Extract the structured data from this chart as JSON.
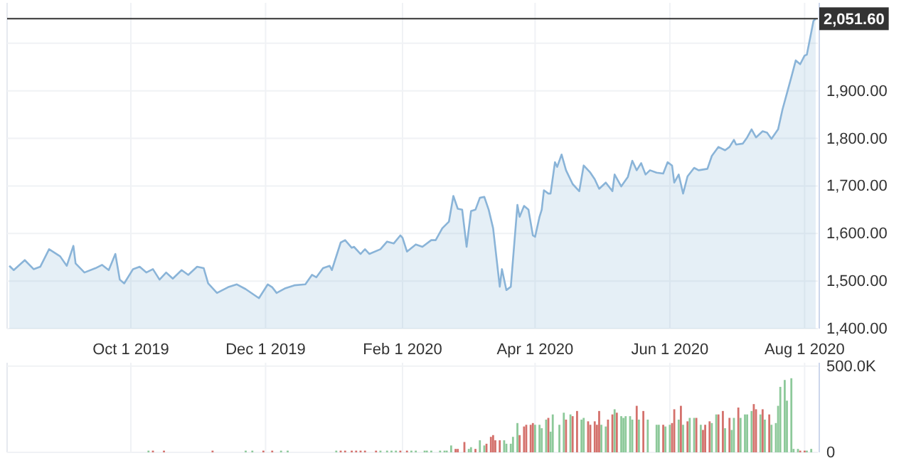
{
  "chart_data": [
    {
      "type": "area",
      "xlim": [
        "2019-08-06",
        "2020-08-07"
      ],
      "ylim": [
        1400,
        2085
      ],
      "xticks": [
        {
          "value": "2019-10-01",
          "label": "Oct 1 2019"
        },
        {
          "value": "2019-12-01",
          "label": "Dec 1 2019"
        },
        {
          "value": "2020-02-01",
          "label": "Feb 1 2020"
        },
        {
          "value": "2020-04-01",
          "label": "Apr 1 2020"
        },
        {
          "value": "2020-06-01",
          "label": "Jun 1 2020"
        },
        {
          "value": "2020-08-01",
          "label": "Aug 1 2020"
        }
      ],
      "yticks": [
        {
          "value": 1400,
          "label": "1,400.00"
        },
        {
          "value": 1500,
          "label": "1,500.00"
        },
        {
          "value": 1600,
          "label": "1,600.00"
        },
        {
          "value": 1700,
          "label": "1,700.00"
        },
        {
          "value": 1800,
          "label": "1,800.00"
        },
        {
          "value": 1900,
          "label": "1,900.00"
        },
        {
          "value": 2000,
          "label": null
        }
      ],
      "grid": true,
      "ref_lines": [
        {
          "axis": "y",
          "value": 2051.6,
          "label": "2,051.60",
          "color": "#333333"
        }
      ],
      "series": [
        {
          "color": "#8ab4d8",
          "x": [
            "2019-08-07",
            "2019-08-09",
            "2019-08-14",
            "2019-08-18",
            "2019-08-21",
            "2019-08-25",
            "2019-08-30",
            "2019-09-02",
            "2019-09-05",
            "2019-09-06",
            "2019-09-10",
            "2019-09-15",
            "2019-09-18",
            "2019-09-21",
            "2019-09-24",
            "2019-09-26",
            "2019-09-28",
            "2019-10-02",
            "2019-10-05",
            "2019-10-08",
            "2019-10-11",
            "2019-10-14",
            "2019-10-17",
            "2019-10-20",
            "2019-10-24",
            "2019-10-27",
            "2019-10-31",
            "2019-11-03",
            "2019-11-05",
            "2019-11-09",
            "2019-11-14",
            "2019-11-18",
            "2019-11-22",
            "2019-11-28",
            "2019-12-02",
            "2019-12-04",
            "2019-12-06",
            "2019-12-10",
            "2019-12-14",
            "2019-12-19",
            "2019-12-22",
            "2019-12-24",
            "2019-12-27",
            "2019-12-30",
            "2019-12-31",
            "2020-01-04",
            "2020-01-06",
            "2020-01-09",
            "2020-01-10",
            "2020-01-13",
            "2020-01-15",
            "2020-01-17",
            "2020-01-22",
            "2020-01-25",
            "2020-01-28",
            "2020-01-31",
            "2020-02-01",
            "2020-02-03",
            "2020-02-07",
            "2020-02-10",
            "2020-02-14",
            "2020-02-16",
            "2020-02-19",
            "2020-02-22",
            "2020-02-24",
            "2020-02-26",
            "2020-02-28",
            "2020-03-01",
            "2020-03-03",
            "2020-03-05",
            "2020-03-07",
            "2020-03-09",
            "2020-03-11",
            "2020-03-13",
            "2020-03-16",
            "2020-03-17",
            "2020-03-19",
            "2020-03-21",
            "2020-03-24",
            "2020-03-25",
            "2020-03-27",
            "2020-03-29",
            "2020-03-31",
            "2020-04-01",
            "2020-04-03",
            "2020-04-04",
            "2020-04-05",
            "2020-04-07",
            "2020-04-08",
            "2020-04-10",
            "2020-04-11",
            "2020-04-13",
            "2020-04-15",
            "2020-04-18",
            "2020-04-21",
            "2020-04-23",
            "2020-04-26",
            "2020-04-28",
            "2020-04-30",
            "2020-05-03",
            "2020-05-06",
            "2020-05-07",
            "2020-05-10",
            "2020-05-13",
            "2020-05-15",
            "2020-05-17",
            "2020-05-19",
            "2020-05-21",
            "2020-05-23",
            "2020-05-26",
            "2020-05-29",
            "2020-05-31",
            "2020-06-02",
            "2020-06-03",
            "2020-06-05",
            "2020-06-07",
            "2020-06-09",
            "2020-06-12",
            "2020-06-14",
            "2020-06-18",
            "2020-06-20",
            "2020-06-23",
            "2020-06-26",
            "2020-06-28",
            "2020-06-30",
            "2020-07-01",
            "2020-07-04",
            "2020-07-06",
            "2020-07-08",
            "2020-07-10",
            "2020-07-13",
            "2020-07-15",
            "2020-07-17",
            "2020-07-20",
            "2020-07-22",
            "2020-07-24",
            "2020-07-26",
            "2020-07-28",
            "2020-07-30",
            "2020-08-01",
            "2020-08-02",
            "2020-08-04",
            "2020-08-05",
            "2020-08-06"
          ],
          "values": [
            1532,
            1523,
            1544,
            1525,
            1530,
            1567,
            1552,
            1532,
            1574,
            1537,
            1518,
            1527,
            1534,
            1523,
            1557,
            1503,
            1495,
            1525,
            1530,
            1518,
            1525,
            1503,
            1518,
            1505,
            1523,
            1513,
            1530,
            1527,
            1495,
            1475,
            1487,
            1493,
            1483,
            1464,
            1493,
            1487,
            1475,
            1485,
            1491,
            1493,
            1513,
            1508,
            1527,
            1532,
            1523,
            1581,
            1586,
            1570,
            1572,
            1557,
            1567,
            1557,
            1567,
            1583,
            1579,
            1596,
            1591,
            1562,
            1577,
            1572,
            1586,
            1586,
            1611,
            1625,
            1679,
            1652,
            1650,
            1572,
            1647,
            1650,
            1675,
            1677,
            1650,
            1611,
            1488,
            1525,
            1481,
            1488,
            1660,
            1635,
            1658,
            1650,
            1596,
            1593,
            1635,
            1650,
            1691,
            1684,
            1684,
            1750,
            1740,
            1766,
            1733,
            1704,
            1689,
            1743,
            1728,
            1714,
            1694,
            1707,
            1689,
            1724,
            1699,
            1719,
            1753,
            1733,
            1748,
            1724,
            1733,
            1728,
            1726,
            1750,
            1743,
            1707,
            1724,
            1684,
            1720,
            1738,
            1733,
            1736,
            1763,
            1782,
            1775,
            1782,
            1797,
            1787,
            1789,
            1802,
            1819,
            1802,
            1815,
            1812,
            1799,
            1819,
            1861,
            1895,
            1929,
            1964,
            1956,
            1974,
            1976,
            2023,
            2047,
            2051.6
          ]
        }
      ]
    },
    {
      "type": "bar",
      "xlim": [
        "2019-08-06",
        "2020-08-07"
      ],
      "ylim": [
        0,
        520000
      ],
      "xticks": [
        {
          "value": "2019-10-01",
          "label": null
        },
        {
          "value": "2019-12-01",
          "label": null
        },
        {
          "value": "2020-02-01",
          "label": null
        },
        {
          "value": "2020-04-01",
          "label": null
        },
        {
          "value": "2020-06-01",
          "label": null
        },
        {
          "value": "2020-08-01",
          "label": null
        }
      ],
      "yticks": [
        0,
        {
          "value": 500000,
          "label": "500.0K"
        }
      ],
      "grid": true,
      "tick_labels": "y",
      "series": [
        {
          "x": [
            "2019-10-09",
            "2019-10-11",
            "2019-10-16",
            "2019-11-07",
            "2019-11-22",
            "2019-11-25",
            "2019-11-30",
            "2019-12-04",
            "2019-12-08",
            "2019-12-11",
            "2020-01-02",
            "2020-01-04",
            "2020-01-06",
            "2020-01-09",
            "2020-01-11",
            "2020-01-13",
            "2020-01-15",
            "2020-01-20",
            "2020-01-22",
            "2020-01-25",
            "2020-01-27",
            "2020-01-29",
            "2020-01-31",
            "2020-02-03",
            "2020-02-05",
            "2020-02-07",
            "2020-02-11",
            "2020-02-12",
            "2020-02-14",
            "2020-02-18",
            "2020-02-20",
            "2020-02-21",
            "2020-02-23",
            "2020-02-25",
            "2020-02-26",
            "2020-02-29",
            "2020-03-02",
            "2020-03-03",
            "2020-03-05",
            "2020-03-07",
            "2020-03-09",
            "2020-03-10",
            "2020-03-12",
            "2020-03-13",
            "2020-03-14",
            "2020-03-16",
            "2020-03-18",
            "2020-03-19",
            "2020-03-21",
            "2020-03-22",
            "2020-03-24",
            "2020-03-25",
            "2020-03-27",
            "2020-03-28",
            "2020-03-30",
            "2020-03-31",
            "2020-04-01",
            "2020-04-03",
            "2020-04-04",
            "2020-04-06",
            "2020-04-07",
            "2020-04-08",
            "2020-04-09",
            "2020-04-12",
            "2020-04-14",
            "2020-04-15",
            "2020-04-17",
            "2020-04-18",
            "2020-04-20",
            "2020-04-22",
            "2020-04-23",
            "2020-04-25",
            "2020-04-26",
            "2020-04-28",
            "2020-04-29",
            "2020-04-30",
            "2020-05-01",
            "2020-05-03",
            "2020-05-04",
            "2020-05-06",
            "2020-05-07",
            "2020-05-08",
            "2020-05-10",
            "2020-05-11",
            "2020-05-12",
            "2020-05-14",
            "2020-05-15",
            "2020-05-17",
            "2020-05-18",
            "2020-05-20",
            "2020-05-22",
            "2020-05-26",
            "2020-05-27",
            "2020-05-29",
            "2020-05-30",
            "2020-06-01",
            "2020-06-02",
            "2020-06-03",
            "2020-06-05",
            "2020-06-06",
            "2020-06-07",
            "2020-06-09",
            "2020-06-10",
            "2020-06-12",
            "2020-06-13",
            "2020-06-15",
            "2020-06-16",
            "2020-06-17",
            "2020-06-19",
            "2020-06-20",
            "2020-06-22",
            "2020-06-23",
            "2020-06-25",
            "2020-06-26",
            "2020-06-28",
            "2020-06-29",
            "2020-06-30",
            "2020-07-02",
            "2020-07-03",
            "2020-07-05",
            "2020-07-06",
            "2020-07-08",
            "2020-07-09",
            "2020-07-10",
            "2020-07-12",
            "2020-07-13",
            "2020-07-14",
            "2020-07-16",
            "2020-07-17",
            "2020-07-19",
            "2020-07-20",
            "2020-07-21",
            "2020-07-23",
            "2020-07-24",
            "2020-07-26",
            "2020-07-27",
            "2020-07-29",
            "2020-07-30",
            "2020-08-01",
            "2020-08-02",
            "2020-08-04"
          ],
          "values": [
            10000,
            10000,
            10000,
            10000,
            10000,
            10000,
            10000,
            10000,
            10000,
            10000,
            10000,
            10000,
            10000,
            10000,
            10000,
            10000,
            10000,
            10000,
            10000,
            10000,
            10000,
            10000,
            10000,
            10000,
            10000,
            10000,
            10000,
            10000,
            10000,
            10000,
            10000,
            10000,
            40000,
            20000,
            20000,
            60000,
            20000,
            30000,
            20000,
            70000,
            40000,
            50000,
            90000,
            100000,
            70000,
            70000,
            70000,
            50000,
            50000,
            90000,
            170000,
            100000,
            150000,
            160000,
            160000,
            170000,
            160000,
            160000,
            140000,
            190000,
            200000,
            120000,
            220000,
            160000,
            230000,
            190000,
            220000,
            210000,
            240000,
            190000,
            200000,
            180000,
            160000,
            180000,
            160000,
            240000,
            160000,
            150000,
            190000,
            220000,
            250000,
            230000,
            210000,
            200000,
            210000,
            210000,
            190000,
            270000,
            190000,
            240000,
            190000,
            160000,
            160000,
            160000,
            150000,
            160000,
            170000,
            250000,
            190000,
            270000,
            160000,
            180000,
            200000,
            200000,
            200000,
            160000,
            130000,
            160000,
            180000,
            170000,
            220000,
            220000,
            240000,
            140000,
            200000,
            130000,
            200000,
            260000,
            200000,
            220000,
            220000,
            240000,
            280000,
            250000,
            220000,
            250000,
            190000,
            220000,
            160000,
            170000,
            270000,
            380000,
            420000,
            300000,
            430000,
            20000,
            20000,
            10000,
            10000,
            10000,
            20000
          ],
          "colors": [
            "#8dc99a",
            "#d4716c",
            "#d4716c",
            "#d4716c",
            "#8dc99a",
            "#8dc99a",
            "#d4716c",
            "#d4716c",
            "#8dc99a",
            "#8dc99a",
            "#8dc99a",
            "#d4716c",
            "#d4716c",
            "#d4716c",
            "#d4716c",
            "#d4716c",
            "#d4716c",
            "#d4716c",
            "#8dc99a",
            "#8dc99a",
            "#8dc99a",
            "#8dc99a",
            "#d4716c",
            "#d4716c",
            "#8dc99a",
            "#8dc99a",
            "#8dc99a",
            "#8dc99a",
            "#8dc99a",
            "#8dc99a",
            "#8dc99a",
            "#8dc99a",
            "#8dc99a",
            "#d4716c",
            "#d4716c",
            "#d4716c",
            "#8dc99a",
            "#8dc99a",
            "#d4716c",
            "#8dc99a",
            "#8dc99a",
            "#d4716c",
            "#d4716c",
            "#d4716c",
            "#d4716c",
            "#d4716c",
            "#8dc99a",
            "#8dc99a",
            "#8dc99a",
            "#8dc99a",
            "#8dc99a",
            "#d4716c",
            "#d4716c",
            "#d4716c",
            "#d4716c",
            "#d4716c",
            "#8dc99a",
            "#8dc99a",
            "#8dc99a",
            "#8dc99a",
            "#d4716c",
            "#8dc99a",
            "#8dc99a",
            "#8dc99a",
            "#8dc99a",
            "#d4716c",
            "#8dc99a",
            "#d4716c",
            "#d4716c",
            "#8dc99a",
            "#8dc99a",
            "#d4716c",
            "#d4716c",
            "#d4716c",
            "#d4716c",
            "#d4716c",
            "#8dc99a",
            "#8dc99a",
            "#d4716c",
            "#d4716c",
            "#8dc99a",
            "#d4716c",
            "#8dc99a",
            "#8dc99a",
            "#8dc99a",
            "#8dc99a",
            "#8dc99a",
            "#d4716c",
            "#8dc99a",
            "#d4716c",
            "#8dc99a",
            "#8dc99a",
            "#8dc99a",
            "#d4716c",
            "#8dc99a",
            "#8dc99a",
            "#d4716c",
            "#d4716c",
            "#8dc99a",
            "#d4716c",
            "#8dc99a",
            "#d4716c",
            "#8dc99a",
            "#8dc99a",
            "#d4716c",
            "#8dc99a",
            "#d4716c",
            "#d4716c",
            "#d4716c",
            "#8dc99a",
            "#8dc99a",
            "#d4716c",
            "#d4716c",
            "#8dc99a",
            "#d4716c",
            "#8dc99a",
            "#8dc99a",
            "#d4716c",
            "#8dc99a",
            "#8dc99a",
            "#8dc99a",
            "#8dc99a",
            "#d4716c",
            "#d4716c",
            "#8dc99a",
            "#d4716c",
            "#8dc99a",
            "#d4716c",
            "#8dc99a",
            "#8dc99a",
            "#8dc99a",
            "#8dc99a",
            "#8dc99a",
            "#8dc99a",
            "#8dc99a",
            "#8dc99a",
            "#8dc99a",
            "#d4716c",
            "#d4716c",
            "#8dc99a",
            "#8dc99a"
          ]
        }
      ]
    }
  ]
}
